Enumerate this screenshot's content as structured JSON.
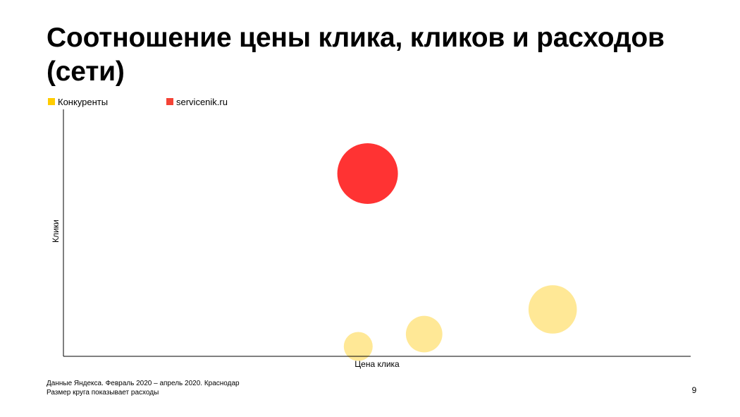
{
  "slide": {
    "title": "Соотношение цены клика, кликов и расходов (сети)",
    "footnote_line1": "Данные Яндекса. Февраль 2020 – апрель 2020. Краснодар",
    "footnote_line2": "Размер круга показывает расходы",
    "page_number": "9"
  },
  "colors": {
    "competitors": "#FFE896",
    "competitors_legend": "#FFCC00",
    "servicenik": "#FF3333",
    "servicenik_legend": "#F44336",
    "axis": "#000000"
  },
  "chart_data": {
    "type": "bubble",
    "title": "Соотношение цены клика, кликов и расходов (сети)",
    "xlabel": "Цена клика",
    "ylabel": "Клики",
    "size_meaning": "Размер круга показывает расходы",
    "xlim": [
      0,
      100
    ],
    "ylim": [
      0,
      100
    ],
    "grid": false,
    "axis_ticks": false,
    "legend_position": "top-left",
    "series": [
      {
        "name": "Конкуренты",
        "points": [
          {
            "x": 47,
            "y": 4,
            "size": 10
          },
          {
            "x": 57.5,
            "y": 9,
            "size": 16
          },
          {
            "x": 78,
            "y": 19,
            "size": 28
          }
        ]
      },
      {
        "name": "servicenik.ru",
        "points": [
          {
            "x": 48.5,
            "y": 74,
            "size": 44
          }
        ]
      }
    ]
  }
}
